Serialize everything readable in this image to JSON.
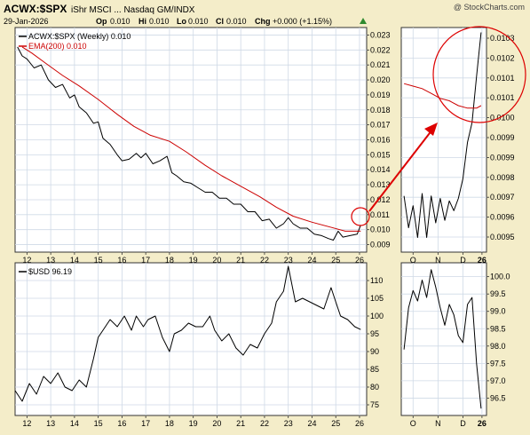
{
  "header": {
    "symbol": "ACWX:$SPX",
    "description": "iShr MSCI ... Nasdaq GM/INDX",
    "date": "29-Jan-2026",
    "op_label": "Op",
    "op_value": "0.010",
    "hi_label": "Hi",
    "hi_value": "0.010",
    "lo_label": "Lo",
    "lo_value": "0.010",
    "cl_label": "Cl",
    "cl_value": "0.010",
    "chg_label": "Chg",
    "chg_value": "+0.000 (+1.15%)",
    "watermark": "@ StockCharts.com"
  },
  "colors": {
    "background": "#f4edc9",
    "plot_bg": "#ffffff",
    "grid": "#cfd9e6",
    "price": "#000000",
    "ema": "#cc0000",
    "annotation": "#dd0000",
    "up_triangle": "#2f8a2f"
  },
  "chart_data": [
    {
      "type": "line",
      "panel": "ratio-main",
      "legend": [
        {
          "name": "ACWX:$SPX (Weekly) 0.010",
          "color": "#000000"
        },
        {
          "name": "EMA(200) 0.010",
          "color": "#cc0000"
        }
      ],
      "x_ticks": [
        "12",
        "13",
        "14",
        "15",
        "16",
        "17",
        "18",
        "19",
        "20",
        "21",
        "22",
        "23",
        "24",
        "25",
        "26"
      ],
      "ylim": [
        0.0085,
        0.0235
      ],
      "y_ticks": [
        "0.009",
        "0.010",
        "0.011",
        "0.012",
        "0.013",
        "0.014",
        "0.015",
        "0.016",
        "0.017",
        "0.018",
        "0.019",
        "0.020",
        "0.021",
        "0.022",
        "0.023"
      ],
      "series": [
        {
          "name": "ACWX:$SPX (Weekly)",
          "x": [
            11.6,
            11.8,
            12.0,
            12.3,
            12.6,
            12.9,
            13.2,
            13.5,
            13.8,
            14.0,
            14.2,
            14.5,
            14.8,
            15.0,
            15.2,
            15.5,
            15.8,
            16.0,
            16.3,
            16.6,
            16.8,
            17.0,
            17.3,
            17.6,
            17.9,
            18.1,
            18.3,
            18.6,
            18.9,
            19.2,
            19.5,
            19.8,
            20.1,
            20.4,
            20.7,
            21.0,
            21.3,
            21.6,
            21.9,
            22.2,
            22.5,
            22.8,
            23.0,
            23.2,
            23.5,
            23.8,
            24.1,
            24.4,
            24.7,
            24.9,
            25.1,
            25.3,
            25.6,
            25.9,
            26.05
          ],
          "values": [
            0.0222,
            0.0216,
            0.0214,
            0.0208,
            0.021,
            0.02,
            0.0195,
            0.0197,
            0.0188,
            0.019,
            0.0182,
            0.0178,
            0.0171,
            0.0172,
            0.0161,
            0.0157,
            0.015,
            0.0146,
            0.0147,
            0.0151,
            0.0148,
            0.0151,
            0.0144,
            0.0146,
            0.0149,
            0.0138,
            0.0136,
            0.0132,
            0.0131,
            0.0128,
            0.0125,
            0.0125,
            0.0121,
            0.0121,
            0.0117,
            0.0117,
            0.0112,
            0.0112,
            0.0106,
            0.0107,
            0.0101,
            0.0104,
            0.0108,
            0.0104,
            0.0101,
            0.0101,
            0.0097,
            0.0096,
            0.0094,
            0.0093,
            0.0099,
            0.0095,
            0.0096,
            0.0097,
            0.0103
          ]
        },
        {
          "name": "EMA(200)",
          "x": [
            11.8,
            12.2,
            12.8,
            13.5,
            14.2,
            15.0,
            15.8,
            16.5,
            17.2,
            18.0,
            18.7,
            19.5,
            20.2,
            21.0,
            21.8,
            22.5,
            23.2,
            24.0,
            24.7,
            25.4,
            26.05
          ],
          "values": [
            0.0222,
            0.0218,
            0.0211,
            0.0203,
            0.0196,
            0.0187,
            0.0177,
            0.0169,
            0.0163,
            0.0159,
            0.0152,
            0.0143,
            0.0136,
            0.0129,
            0.0122,
            0.0115,
            0.0109,
            0.0105,
            0.0102,
            0.0099,
            0.0099
          ]
        }
      ]
    },
    {
      "type": "line",
      "panel": "usd-main",
      "legend": [
        {
          "name": "$USD 96.19",
          "color": "#000000"
        }
      ],
      "x_ticks": [
        "12",
        "13",
        "14",
        "15",
        "16",
        "17",
        "18",
        "19",
        "20",
        "21",
        "22",
        "23",
        "24",
        "25",
        "26"
      ],
      "ylim": [
        72,
        115
      ],
      "y_ticks": [
        "75",
        "80",
        "85",
        "90",
        "95",
        "100",
        "105",
        "110"
      ],
      "series": [
        {
          "name": "$USD",
          "x": [
            11.5,
            11.8,
            12.1,
            12.4,
            12.7,
            13.0,
            13.3,
            13.6,
            13.9,
            14.2,
            14.5,
            14.8,
            15.0,
            15.2,
            15.5,
            15.8,
            16.1,
            16.4,
            16.6,
            16.9,
            17.1,
            17.4,
            17.7,
            18.0,
            18.2,
            18.5,
            18.8,
            19.1,
            19.4,
            19.7,
            19.9,
            20.2,
            20.5,
            20.8,
            21.1,
            21.4,
            21.7,
            22.0,
            22.3,
            22.5,
            22.8,
            23.0,
            23.3,
            23.6,
            23.9,
            24.2,
            24.5,
            24.8,
            25.0,
            25.2,
            25.5,
            25.8,
            26.05
          ],
          "values": [
            79,
            76,
            81,
            78,
            83,
            81,
            84,
            80,
            79,
            82,
            80,
            88,
            94,
            96,
            99,
            97,
            100,
            96,
            100,
            97,
            99,
            100,
            94,
            90,
            95,
            96,
            98,
            97,
            97,
            100,
            96,
            93,
            95,
            91,
            89,
            92,
            91,
            95,
            98,
            104,
            107,
            114,
            104,
            105,
            104,
            103,
            102,
            108,
            104,
            100,
            99,
            97,
            96.2
          ]
        }
      ]
    },
    {
      "type": "line",
      "panel": "ratio-zoom",
      "x_ticks": [
        "O",
        "N",
        "D",
        "26"
      ],
      "ylim": [
        0.00943,
        0.01035
      ],
      "y_ticks": [
        "0.0095",
        "0.0096",
        "0.0097",
        "0.0098",
        "0.0099",
        "0.0099",
        "0.0100",
        "0.0101",
        "0.0101",
        "0.0102",
        "0.0103"
      ],
      "series": [
        {
          "name": "ACWX:$SPX (Weekly)",
          "x": [
            0,
            1,
            2,
            3,
            4,
            5,
            6,
            7,
            8,
            9,
            10,
            11,
            12,
            13,
            14,
            15,
            16,
            17
          ],
          "values": [
            0.00966,
            0.00953,
            0.00962,
            0.00949,
            0.00967,
            0.00949,
            0.00966,
            0.00955,
            0.00965,
            0.00956,
            0.00964,
            0.0096,
            0.00965,
            0.00973,
            0.00988,
            0.00996,
            0.01015,
            0.01033
          ]
        },
        {
          "name": "EMA(200)",
          "x": [
            0,
            2,
            4,
            6,
            8,
            10,
            12,
            14,
            16,
            17
          ],
          "values": [
            0.01012,
            0.01011,
            0.0101,
            0.01008,
            0.01006,
            0.01005,
            0.01003,
            0.01002,
            0.01002,
            0.01003
          ]
        }
      ]
    },
    {
      "type": "line",
      "panel": "usd-zoom",
      "x_ticks": [
        "O",
        "N",
        "D",
        "26"
      ],
      "ylim": [
        96.0,
        100.4
      ],
      "y_ticks": [
        "96.5",
        "97.0",
        "97.5",
        "98.0",
        "98.5",
        "99.0",
        "99.5",
        "100.0"
      ],
      "series": [
        {
          "name": "$USD",
          "x": [
            0,
            1,
            2,
            3,
            4,
            5,
            6,
            7,
            8,
            9,
            10,
            11,
            12,
            13,
            14,
            15,
            16,
            17
          ],
          "values": [
            97.9,
            99.1,
            99.6,
            99.3,
            99.9,
            99.4,
            100.2,
            99.7,
            99.1,
            98.6,
            99.2,
            98.9,
            98.3,
            98.1,
            99.2,
            99.4,
            97.5,
            96.2
          ]
        }
      ]
    }
  ]
}
